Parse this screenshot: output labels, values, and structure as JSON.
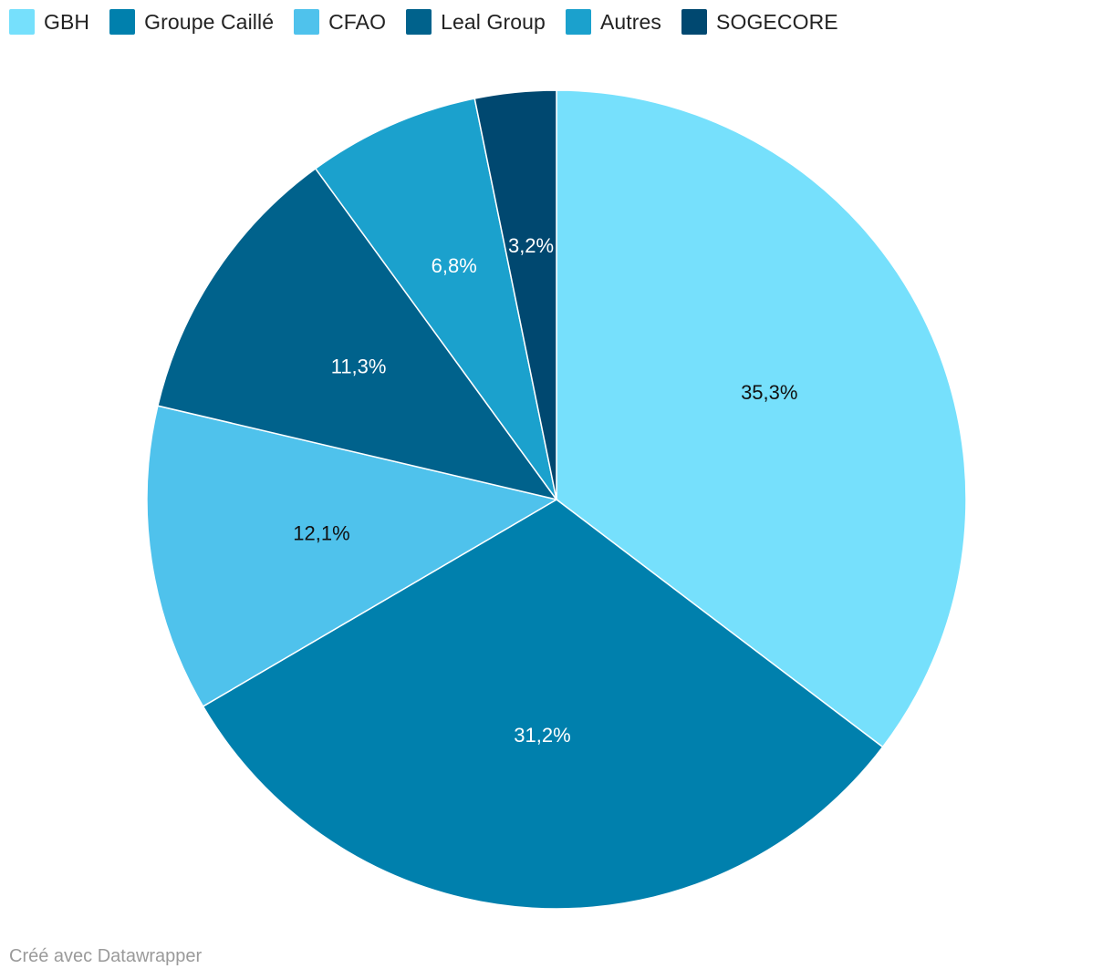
{
  "chart_data": {
    "type": "pie",
    "categories": [
      "GBH",
      "Groupe Caillé",
      "CFAO",
      "Leal Group",
      "Autres",
      "SOGECORE"
    ],
    "values": [
      35.3,
      31.2,
      12.1,
      11.3,
      6.8,
      3.2
    ],
    "value_labels": [
      "35,3%",
      "31,2%",
      "12,1%",
      "11,3%",
      "6,8%",
      "3,2%"
    ],
    "colors": [
      "#76e0fc",
      "#0080ad",
      "#4fc2ec",
      "#00628c",
      "#1ba1cd",
      "#004870"
    ],
    "label_colors": [
      "#111111",
      "#ffffff",
      "#111111",
      "#ffffff",
      "#ffffff",
      "#ffffff"
    ],
    "legend_position": "top-left",
    "start": "top",
    "direction": "clockwise"
  },
  "footer": {
    "credit": "Créé avec Datawrapper"
  }
}
